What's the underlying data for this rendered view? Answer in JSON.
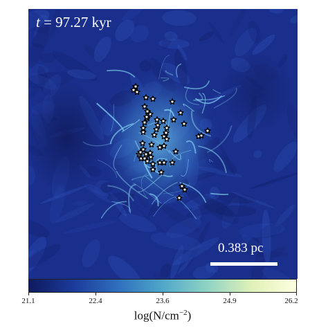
{
  "timestamp": {
    "var": "t",
    "rest": " = 97.27 kyr"
  },
  "scalebar": {
    "label": "0.383 pc"
  },
  "colorbar": {
    "ticks": [
      "21.1",
      "22.4",
      "23.6",
      "24.9",
      "26.2"
    ],
    "label_prefix": "log(N/cm",
    "label_exp": "−2",
    "label_suffix": ")",
    "colormap": [
      "#0e1a5e",
      "#1b3a9a",
      "#2f6fbd",
      "#4fa7c9",
      "#8fd3c4",
      "#e0f1b8",
      "#fefee0"
    ]
  },
  "image": {
    "background_color": "#1a2f8c",
    "filament_color": "#6fb6e6",
    "star_count": 52
  }
}
